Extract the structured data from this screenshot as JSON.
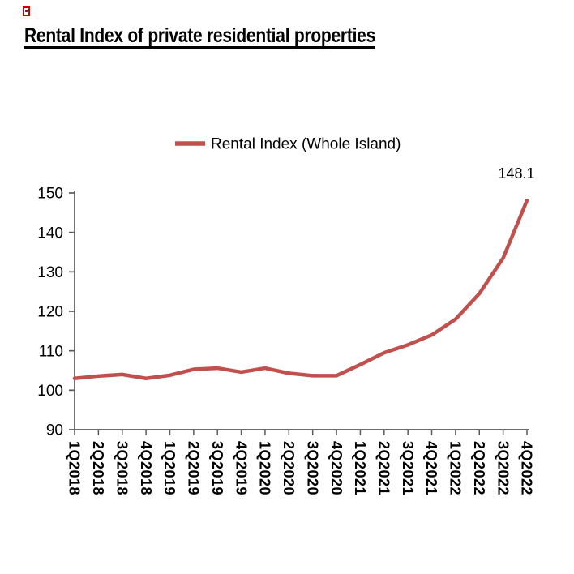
{
  "page": {
    "title": "Rental Index of private residential properties"
  },
  "colors": {
    "line": "#C0504D",
    "axis": "#595959",
    "text": "#000000",
    "marker": "#CC0000"
  },
  "legend": {
    "label": "Rental Index (Whole Island)"
  },
  "annotation": {
    "text": "148.1"
  },
  "chart_data": {
    "type": "line",
    "title": "Rental Index of private residential properties",
    "legend": [
      "Rental Index (Whole Island)"
    ],
    "legend_position": "top",
    "grid": false,
    "categories": [
      "1Q2018",
      "2Q2018",
      "3Q2018",
      "4Q2018",
      "1Q2019",
      "2Q2019",
      "3Q2019",
      "4Q2019",
      "1Q2020",
      "2Q2020",
      "3Q2020",
      "4Q2020",
      "1Q2021",
      "2Q2021",
      "3Q2021",
      "4Q2021",
      "1Q2022",
      "2Q2022",
      "3Q2022",
      "4Q2022"
    ],
    "series": [
      {
        "name": "Rental Index (Whole Island)",
        "color": "#C0504D",
        "values": [
          103.0,
          103.6,
          104.0,
          103.0,
          103.8,
          105.3,
          105.6,
          104.6,
          105.6,
          104.3,
          103.7,
          103.7,
          106.5,
          109.5,
          111.5,
          114.0,
          118.0,
          124.5,
          133.5,
          148.1
        ]
      }
    ],
    "ylim": [
      90,
      150
    ],
    "yticks": [
      90,
      100,
      110,
      120,
      130,
      140,
      150
    ],
    "annotation": {
      "text": "148.1",
      "series_index": 0,
      "point_index": 19
    }
  }
}
